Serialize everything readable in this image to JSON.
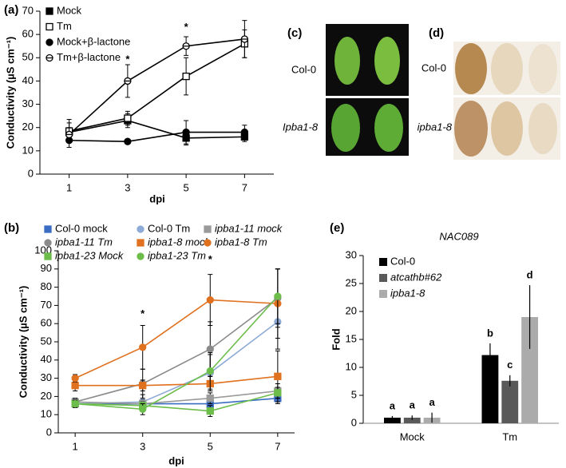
{
  "chart_data": [
    {
      "panel": "(a)",
      "type": "line",
      "x": [
        1,
        3,
        5,
        7
      ],
      "xlim": [
        0,
        8
      ],
      "xticks": [
        1,
        3,
        5,
        7
      ],
      "ylim": [
        0,
        70
      ],
      "yticks": [
        0,
        10,
        20,
        30,
        40,
        50,
        60,
        70
      ],
      "x_label": "dpi",
      "y_label": "Conductivity (µS cm⁻¹)",
      "legend": "upper left",
      "series": [
        {
          "name": "Mock",
          "color": "#000000",
          "marker": "square",
          "marker_fill": "#000000",
          "values": [
            18,
            23,
            15.5,
            16
          ],
          "errors": [
            4,
            3,
            3,
            2
          ]
        },
        {
          "name": "Tm",
          "color": "#000000",
          "marker": "square",
          "marker_fill": "#ffffff",
          "values": [
            18.5,
            24,
            42,
            56
          ],
          "errors": [
            5,
            3,
            8,
            6
          ]
        },
        {
          "name": "Mock+β-lactone",
          "color": "#000000",
          "marker": "circle",
          "marker_fill": "#000000",
          "values": [
            14.5,
            14,
            18,
            18
          ],
          "errors": [
            3,
            1,
            5,
            3
          ]
        },
        {
          "name": "Tm+β-lactone",
          "color": "#000000",
          "marker": "circle-barred",
          "marker_fill": "#ffffff",
          "values": [
            17,
            40,
            55,
            58
          ],
          "errors": [
            3,
            7,
            4,
            8
          ]
        }
      ],
      "annotations": [
        {
          "text": "*",
          "x": 3,
          "y": 49
        },
        {
          "text": "*",
          "x": 5,
          "y": 63
        }
      ]
    },
    {
      "panel": "(b)",
      "type": "line",
      "x": [
        1,
        3,
        5,
        7
      ],
      "xlim": [
        0.5,
        7.5
      ],
      "xticks": [
        1,
        3,
        5,
        7
      ],
      "ylim": [
        0,
        100
      ],
      "yticks": [
        0,
        10,
        20,
        30,
        40,
        50,
        60,
        70,
        80,
        90,
        100
      ],
      "x_label": "dpi",
      "y_label": "Conductivity (µS cm⁻¹)",
      "legend": "top",
      "series": [
        {
          "name": "Col-0 mock",
          "italic": false,
          "color": "#3a6cc4",
          "marker": "square",
          "marker_fill": "#3a6cc4",
          "values": [
            16,
            16,
            16,
            19
          ],
          "errors": [
            2,
            2,
            3,
            3
          ]
        },
        {
          "name": "Col-0 Tm",
          "italic": false,
          "color": "#8eaad6",
          "marker": "circle",
          "marker_fill": "#8eaad6",
          "values": [
            16,
            17,
            33,
            61
          ],
          "errors": [
            2,
            4,
            10,
            15
          ]
        },
        {
          "name": "ipba1-11 mock",
          "italic": true,
          "color": "#9a9a9a",
          "marker": "square",
          "marker_fill": "#9a9a9a",
          "values": [
            17,
            16,
            19,
            23
          ],
          "errors": [
            2,
            2,
            3,
            4
          ]
        },
        {
          "name": "ipba1-11 Tm",
          "italic": true,
          "color": "#8a8a8a",
          "marker": "circle",
          "marker_fill": "#8a8a8a",
          "values": [
            17,
            27,
            46,
            74
          ],
          "errors": [
            2,
            8,
            15,
            16
          ]
        },
        {
          "name": "ipba1-8 mock",
          "italic": true,
          "color": "#e0711f",
          "marker": "square",
          "marker_fill": "#e0711f",
          "values": [
            26,
            26,
            27,
            31
          ],
          "errors": [
            3,
            3,
            4,
            14
          ]
        },
        {
          "name": "ipba1-8 Tm",
          "italic": true,
          "color": "#e0711f",
          "marker": "circle",
          "marker_fill": "#e0711f",
          "values": [
            30,
            47,
            73,
            71
          ],
          "errors": [
            2,
            12,
            14,
            19
          ]
        },
        {
          "name": "ipba1-23 Mock",
          "italic": true,
          "color": "#6cbd4a",
          "marker": "square",
          "marker_fill": "#6cbd4a",
          "values": [
            16,
            15,
            12,
            22
          ],
          "errors": [
            2,
            2,
            3,
            3
          ]
        },
        {
          "name": "ipba1-23 Tm",
          "italic": true,
          "color": "#6cbd4a",
          "marker": "circle",
          "marker_fill": "#6cbd4a",
          "values": [
            16,
            13,
            34,
            75
          ],
          "errors": [
            2,
            3,
            10,
            15
          ]
        }
      ],
      "annotations": [
        {
          "text": "*",
          "x": 3,
          "y": 65
        },
        {
          "text": "*",
          "x": 5,
          "y": 95
        }
      ]
    },
    {
      "panel": "(e)",
      "type": "bar",
      "title": "NAC089",
      "categories": [
        "Mock",
        "Tm"
      ],
      "ylim": [
        0,
        30
      ],
      "yticks": [
        0,
        5,
        10,
        15,
        20,
        25,
        30
      ],
      "y_label": "Fold",
      "legend": "upper left",
      "series": [
        {
          "name": "Col-0",
          "color": "#000000",
          "values": [
            1,
            12.2
          ],
          "errors": [
            0.3,
            2.1
          ],
          "letters": [
            "a",
            "b"
          ]
        },
        {
          "name": "atcathb#62",
          "italic": true,
          "color": "#595959",
          "values": [
            1,
            7.6
          ],
          "errors": [
            0.4,
            1
          ],
          "letters": [
            "a",
            "c"
          ]
        },
        {
          "name": "ipba1-8",
          "italic": true,
          "color": "#ababab",
          "values": [
            1,
            19
          ],
          "errors": [
            0.9,
            5.7
          ],
          "letters": [
            "a",
            "d"
          ]
        }
      ]
    }
  ],
  "photo_panels": [
    {
      "panel": "(c)",
      "labels": [
        "Col-0",
        "Ipba1-8"
      ]
    },
    {
      "panel": "(d)",
      "labels": [
        "Col-0",
        "ipba1-8"
      ]
    }
  ]
}
